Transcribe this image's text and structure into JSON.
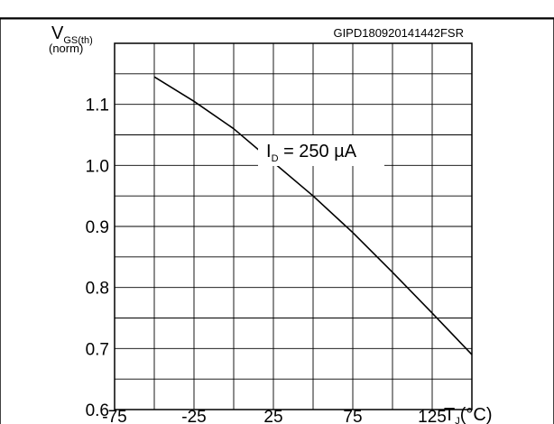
{
  "chart_data": {
    "type": "line",
    "title": "",
    "figure_code": "GIPD180920141442FSR",
    "ylabel": {
      "main": "V",
      "sub": "GS(th)",
      "norm": "(norm)"
    },
    "xlabel": {
      "main": "T",
      "sub": "J",
      "unit": "(°C)"
    },
    "xlim": [
      -75,
      150
    ],
    "ylim": [
      0.6,
      1.2
    ],
    "x_ticks": [
      -75,
      -25,
      25,
      75,
      125
    ],
    "x_tick_labels": [
      "-75",
      "-25",
      "25",
      "75",
      "125"
    ],
    "y_ticks": [
      0.6,
      0.7,
      0.8,
      0.9,
      1.0,
      1.1
    ],
    "y_tick_labels": [
      "0.6",
      "0.7",
      "0.8",
      "0.9",
      "1.0",
      "1.1"
    ],
    "grid": true,
    "series": [
      {
        "x": [
          -50,
          -25,
          0,
          25,
          50,
          75,
          100,
          125,
          150
        ],
        "y": [
          1.145,
          1.105,
          1.06,
          1.005,
          0.95,
          0.89,
          0.825,
          0.758,
          0.69
        ]
      }
    ],
    "annotation": {
      "main": "I",
      "sub": "D",
      "rest": " = 250 µA"
    }
  }
}
